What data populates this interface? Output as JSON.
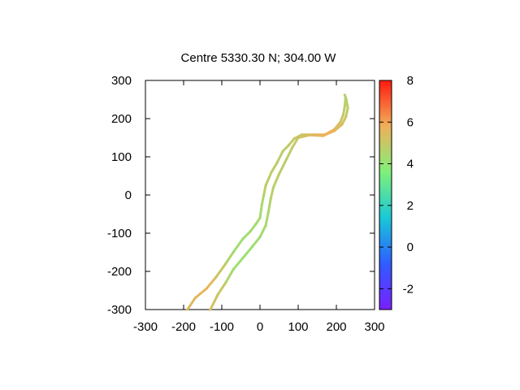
{
  "chart_data": {
    "type": "line",
    "title": "Centre 5330.30 N; 304.00  W",
    "xlabel": "",
    "ylabel": "",
    "xlim": [
      -300,
      300
    ],
    "ylim": [
      -300,
      300
    ],
    "xticks": [
      -300,
      -200,
      -100,
      0,
      100,
      200,
      300
    ],
    "yticks": [
      -300,
      -200,
      -100,
      0,
      100,
      200,
      300
    ],
    "colorbar": {
      "range": [
        -3,
        8
      ],
      "ticks": [
        -2,
        0,
        2,
        4,
        6,
        8
      ],
      "colormap": "rainbow",
      "colors": [
        "#7a1fff",
        "#2f5cff",
        "#19c8d8",
        "#7ff07a",
        "#f0b05a",
        "#ff1a10"
      ]
    },
    "grid": false,
    "series": [
      {
        "points": [
          [
            -190,
            -300,
            5.4
          ],
          [
            -170,
            -270,
            5.5
          ],
          [
            -140,
            -245,
            5.8
          ],
          [
            -115,
            -215,
            5.2
          ],
          [
            -90,
            -180,
            4.8
          ],
          [
            -70,
            -150,
            4.3
          ],
          [
            -45,
            -115,
            4.2
          ],
          [
            -25,
            -95,
            4.3
          ],
          [
            -10,
            -75,
            4.3
          ],
          [
            0,
            -60,
            4.4
          ],
          [
            5,
            -25,
            4.4
          ],
          [
            10,
            0,
            4.6
          ],
          [
            15,
            25,
            4.8
          ],
          [
            30,
            60,
            4.9
          ],
          [
            45,
            85,
            4.8
          ],
          [
            60,
            115,
            4.8
          ],
          [
            75,
            130,
            4.9
          ],
          [
            90,
            148,
            5.0
          ],
          [
            110,
            158,
            5.0
          ],
          [
            140,
            158,
            5.6
          ],
          [
            170,
            158,
            5.9
          ],
          [
            195,
            172,
            5.7
          ],
          [
            210,
            190,
            5.2
          ],
          [
            218,
            210,
            5.0
          ],
          [
            222,
            232,
            4.8
          ],
          [
            224,
            255,
            4.7
          ]
        ]
      },
      {
        "points": [
          [
            -130,
            -300,
            5.3
          ],
          [
            -110,
            -260,
            5.1
          ],
          [
            -90,
            -230,
            4.8
          ],
          [
            -70,
            -195,
            4.2
          ],
          [
            -45,
            -165,
            4.1
          ],
          [
            -20,
            -135,
            4.2
          ],
          [
            0,
            -110,
            4.3
          ],
          [
            15,
            -80,
            4.4
          ],
          [
            22,
            -45,
            4.5
          ],
          [
            28,
            -10,
            4.6
          ],
          [
            35,
            20,
            4.7
          ],
          [
            50,
            55,
            4.8
          ],
          [
            70,
            95,
            4.8
          ],
          [
            85,
            125,
            4.9
          ],
          [
            100,
            150,
            5.0
          ],
          [
            130,
            157,
            5.3
          ],
          [
            165,
            155,
            5.8
          ],
          [
            195,
            168,
            5.6
          ],
          [
            215,
            185,
            5.2
          ],
          [
            225,
            205,
            5.0
          ],
          [
            230,
            228,
            4.8
          ],
          [
            226,
            250,
            4.6
          ],
          [
            222,
            262,
            4.7
          ]
        ]
      }
    ]
  }
}
